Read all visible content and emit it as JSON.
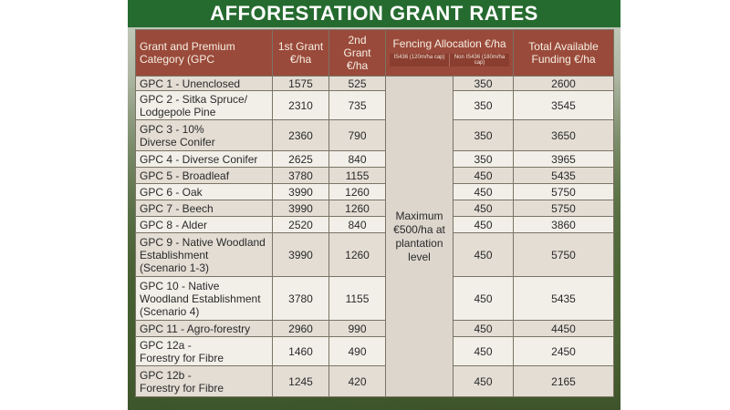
{
  "title": "AFFORESTATION GRANT RATES",
  "headers": {
    "category": "Grant and Premium Category (GPC",
    "grant1": "1st Grant €/ha",
    "grant2": "2nd Grant €/ha",
    "fencing": "Fencing Allocation €/ha",
    "fencing_sub1": "IS436 (120m/ha cap)",
    "fencing_sub2": "Non IS436 (180m/ha cap)",
    "total": "Total Available Funding €/ha"
  },
  "fencing_note": "Maximum\n€500/ha at\nplantation\nlevel",
  "rows": [
    {
      "category": "GPC 1 - Unenclosed",
      "grant1": "1575",
      "grant2": "525",
      "fence": "350",
      "total": "2600"
    },
    {
      "category": "GPC 2 - Sitka Spruce/\nLodgepole Pine",
      "grant1": "2310",
      "grant2": "735",
      "fence": "350",
      "total": "3545"
    },
    {
      "category": "GPC 3 - 10%\nDiverse Conifer",
      "grant1": "2360",
      "grant2": "790",
      "fence": "350",
      "total": "3650"
    },
    {
      "category": "GPC 4 - Diverse Conifer",
      "grant1": "2625",
      "grant2": "840",
      "fence": "350",
      "total": "3965"
    },
    {
      "category": "GPC 5 - Broadleaf",
      "grant1": "3780",
      "grant2": "1155",
      "fence": "450",
      "total": "5435"
    },
    {
      "category": "GPC 6 - Oak",
      "grant1": "3990",
      "grant2": "1260",
      "fence": "450",
      "total": "5750"
    },
    {
      "category": "GPC 7 - Beech",
      "grant1": "3990",
      "grant2": "1260",
      "fence": "450",
      "total": "5750"
    },
    {
      "category": "GPC 8 - Alder",
      "grant1": "2520",
      "grant2": "840",
      "fence": "450",
      "total": "3860"
    },
    {
      "category": "GPC 9 - Native Woodland\nEstablishment\n(Scenario 1-3)",
      "grant1": "3990",
      "grant2": "1260",
      "fence": "450",
      "total": "5750"
    },
    {
      "category": "GPC 10 - Native\nWoodland Establishment\n(Scenario 4)",
      "grant1": "3780",
      "grant2": "1155",
      "fence": "450",
      "total": "5435"
    },
    {
      "category": "GPC 11 - Agro-forestry",
      "grant1": "2960",
      "grant2": "990",
      "fence": "450",
      "total": "4450"
    },
    {
      "category": "GPC 12a -\nForestry for Fibre",
      "grant1": "1460",
      "grant2": "490",
      "fence": "450",
      "total": "2450"
    },
    {
      "category": "GPC 12b -\nForestry for Fibre",
      "grant1": "1245",
      "grant2": "420",
      "fence": "450",
      "total": "2165"
    }
  ]
}
